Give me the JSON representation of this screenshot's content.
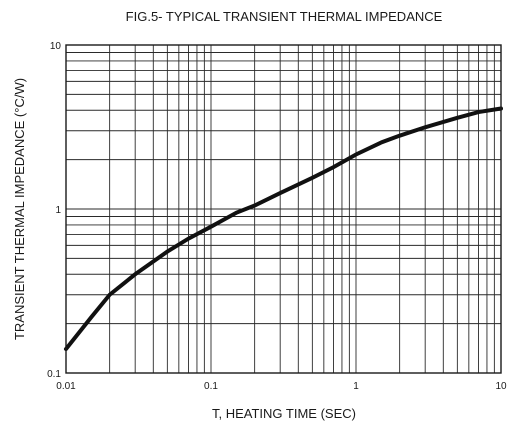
{
  "chart_data": {
    "type": "line",
    "title": "FIG.5- TYPICAL TRANSIENT THERMAL IMPEDANCE",
    "xlabel": "T, HEATING TIME (SEC)",
    "ylabel": "TRANSIENT THERMAL IMPEDANCE (°C/W)",
    "x_scale": "log",
    "y_scale": "log",
    "xlim": [
      0.01,
      10
    ],
    "ylim": [
      0.1,
      10
    ],
    "x_ticks": [
      "0.01",
      "0.1",
      "1",
      "10"
    ],
    "y_ticks": [
      "0.1",
      "1",
      "10"
    ],
    "grid": true,
    "series": [
      {
        "x": [
          0.01,
          0.015,
          0.02,
          0.03,
          0.05,
          0.07,
          0.1,
          0.15,
          0.2,
          0.3,
          0.5,
          0.7,
          1,
          1.5,
          2,
          3,
          5,
          7,
          10
        ],
        "y": [
          0.14,
          0.22,
          0.3,
          0.4,
          0.55,
          0.66,
          0.78,
          0.95,
          1.05,
          1.25,
          1.55,
          1.8,
          2.15,
          2.55,
          2.8,
          3.15,
          3.6,
          3.9,
          4.1
        ]
      }
    ]
  }
}
